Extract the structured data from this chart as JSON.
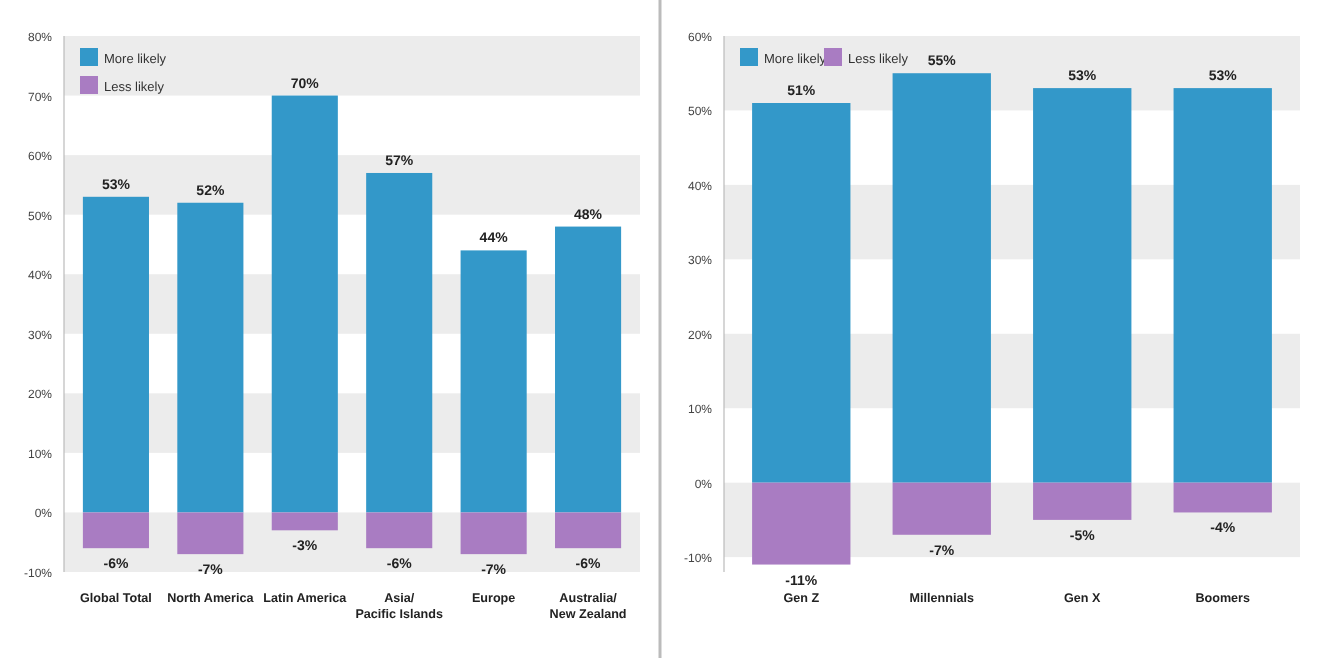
{
  "chart_data": [
    {
      "type": "bar",
      "categories": [
        "Global Total",
        "North America",
        "Latin America",
        "Asia/\nPacific Islands",
        "Europe",
        "Australia/\nNew Zealand"
      ],
      "stacked": true,
      "legend": "top left",
      "ylim": [
        -10,
        80
      ],
      "yticks": [
        {
          "value": -10,
          "label": "-10%"
        },
        {
          "value": 0,
          "label": "0%"
        },
        {
          "value": 10,
          "label": "10%"
        },
        {
          "value": 20,
          "label": "20%"
        },
        {
          "value": 30,
          "label": "30%"
        },
        {
          "value": 40,
          "label": "40%"
        },
        {
          "value": 50,
          "label": "50%"
        },
        {
          "value": 60,
          "label": "60%"
        },
        {
          "value": 70,
          "label": "70%"
        },
        {
          "value": 80,
          "label": "80%"
        }
      ],
      "series": [
        {
          "name": "More likely",
          "color": "#3398c9",
          "values": [
            53,
            52,
            70,
            57,
            44,
            48
          ],
          "value_labels": [
            "53%",
            "52%",
            "70%",
            "57%",
            "44%",
            "48%"
          ]
        },
        {
          "name": "Less likely",
          "color": "#a97cc2",
          "values": [
            -6,
            -7,
            -3,
            -6,
            -7,
            -6
          ],
          "value_labels": [
            "-6%",
            "-7%",
            "-3%",
            "-6%",
            "-7%",
            "-6%"
          ]
        }
      ]
    },
    {
      "type": "bar",
      "categories": [
        "Gen Z",
        "Millennials",
        "Gen X",
        "Boomers"
      ],
      "stacked": true,
      "legend": "top left",
      "ylim": [
        -12,
        60
      ],
      "yticks": [
        {
          "value": -10,
          "label": "-10%"
        },
        {
          "value": 0,
          "label": "0%"
        },
        {
          "value": 10,
          "label": "10%"
        },
        {
          "value": 20,
          "label": "20%"
        },
        {
          "value": 30,
          "label": "30%"
        },
        {
          "value": 40,
          "label": "40%"
        },
        {
          "value": 50,
          "label": "50%"
        },
        {
          "value": 60,
          "label": "60%"
        }
      ],
      "series": [
        {
          "name": "More likely",
          "color": "#3398c9",
          "values": [
            51,
            55,
            53,
            53
          ],
          "value_labels": [
            "51%",
            "55%",
            "53%",
            "53%"
          ]
        },
        {
          "name": "Less likely",
          "color": "#a97cc2",
          "values": [
            -11,
            -7,
            -5,
            -4
          ],
          "value_labels": [
            "-11%",
            "-7%",
            "-5%",
            "-4%"
          ]
        }
      ]
    }
  ]
}
